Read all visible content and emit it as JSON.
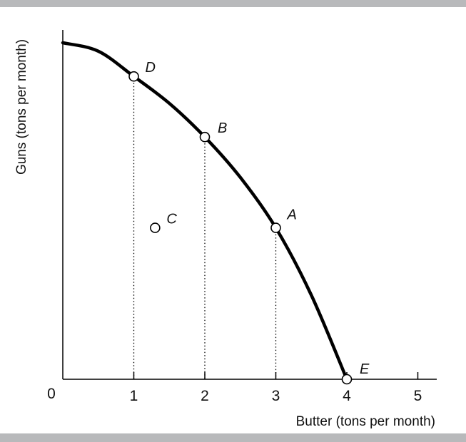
{
  "chart_data": {
    "type": "line",
    "xlabel": "Butter (tons per month)",
    "ylabel": "Guns (tons per month)",
    "origin_label": "0",
    "x_ticks": [
      1,
      2,
      3,
      4,
      5
    ],
    "x_domain": [
      0,
      5
    ],
    "y_domain": [
      0,
      1
    ],
    "curve": {
      "x": [
        0,
        0.5,
        1,
        1.5,
        2,
        2.5,
        3,
        3.5,
        4
      ],
      "y": [
        1.0,
        0.975,
        0.9,
        0.82,
        0.72,
        0.6,
        0.45,
        0.25,
        0.0
      ]
    },
    "points": [
      {
        "label": "D",
        "x": 1,
        "y": 0.9
      },
      {
        "label": "B",
        "x": 2,
        "y": 0.72
      },
      {
        "label": "A",
        "x": 3,
        "y": 0.45
      },
      {
        "label": "E",
        "x": 4,
        "y": 0.0
      },
      {
        "label": "C",
        "x": 1.3,
        "y": 0.45
      }
    ],
    "grid": false
  }
}
